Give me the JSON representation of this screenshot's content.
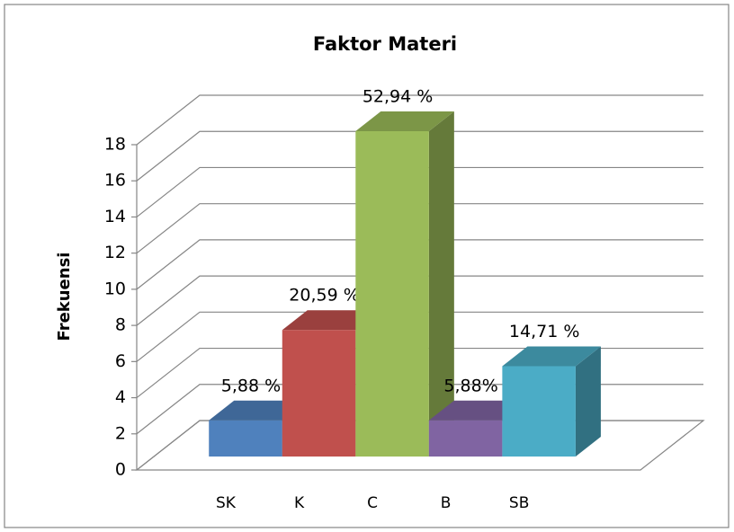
{
  "chart_data": {
    "type": "bar3d",
    "title": "Faktor Materi",
    "y_label": "Frekuensi",
    "categories": [
      "SK",
      "K",
      "C",
      "B",
      "SB"
    ],
    "values": [
      2,
      7,
      18,
      2,
      5
    ],
    "value_labels": [
      "5,88 %",
      "20,59 %",
      "52,94 %",
      "5,88%",
      "14,71 %"
    ],
    "colors": [
      "#4f81bd",
      "#c0504d",
      "#9bbb59",
      "#8064a2",
      "#4bacc6"
    ],
    "ylim": [
      0,
      18
    ],
    "yticks": [
      0,
      2,
      4,
      6,
      8,
      10,
      12,
      14,
      16,
      18
    ],
    "grid": true
  }
}
